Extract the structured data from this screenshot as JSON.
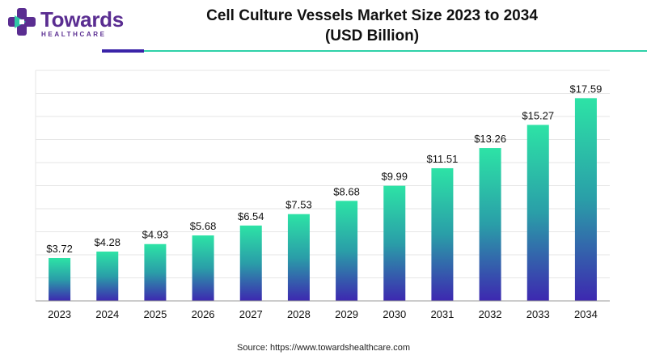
{
  "brand": {
    "name": "Towards",
    "tagline": "HEALTHCARE",
    "colors": {
      "primary": "#5a2d91",
      "accent": "#2ed1a8",
      "secondary": "#3a23a8"
    },
    "icon": "cross-logo-icon"
  },
  "header": {
    "title_line1": "Cell Culture Vessels Market Size 2023 to 2034",
    "title_line2": "(USD Billion)"
  },
  "footer": {
    "source": "Source: https://www.towardshealthcare.com"
  },
  "chart_data": {
    "type": "bar",
    "categories": [
      "2023",
      "2024",
      "2025",
      "2026",
      "2027",
      "2028",
      "2029",
      "2030",
      "2031",
      "2032",
      "2033",
      "2034"
    ],
    "values": [
      3.72,
      4.28,
      4.93,
      5.68,
      6.54,
      7.53,
      8.68,
      9.99,
      11.51,
      13.26,
      15.27,
      17.59
    ],
    "data_labels": [
      "$3.72",
      "$4.28",
      "$4.93",
      "$5.68",
      "$6.54",
      "$7.53",
      "$8.68",
      "$9.99",
      "$11.51",
      "$13.26",
      "$15.27",
      "$17.59"
    ],
    "title": "Cell Culture Vessels Market Size 2023 to 2034",
    "subtitle": "(USD Billion)",
    "xlabel": "",
    "ylabel": "",
    "ylim": [
      0,
      20
    ],
    "grid": true,
    "y_axis_labels_shown": false,
    "bar_gradient": {
      "top": "#2de3a6",
      "middle": "#2a9ea8",
      "bottom": "#3d28b0"
    }
  }
}
